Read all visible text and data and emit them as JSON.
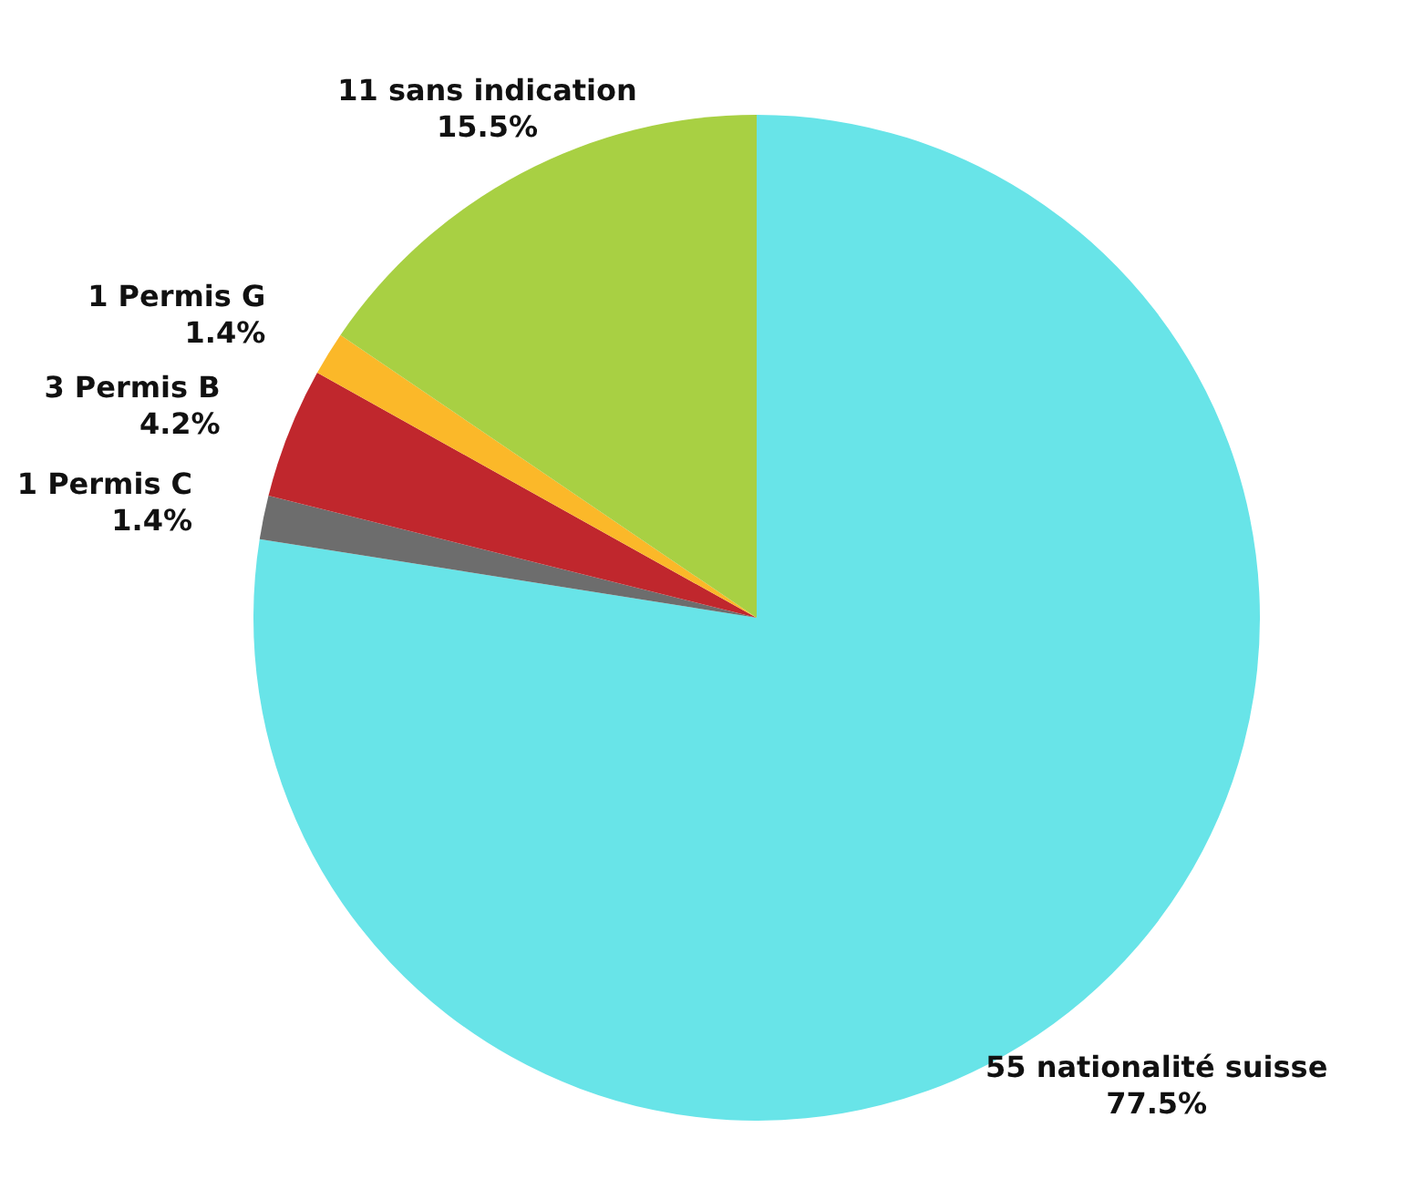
{
  "chart_data": {
    "type": "pie",
    "categories": [
      "55 nationalité suisse",
      "1 Permis C",
      "3 Permis B",
      "1 Permis G",
      "11 sans indication"
    ],
    "values": [
      77.5,
      1.4,
      4.2,
      1.4,
      15.5
    ],
    "value_labels": [
      "77.5%",
      "1.4%",
      "4.2%",
      "1.4%",
      "15.5%"
    ],
    "colors": [
      "#68e4e8",
      "#6d6d6d",
      "#c0272d",
      "#fbb829",
      "#a8d043"
    ],
    "legend": false
  }
}
